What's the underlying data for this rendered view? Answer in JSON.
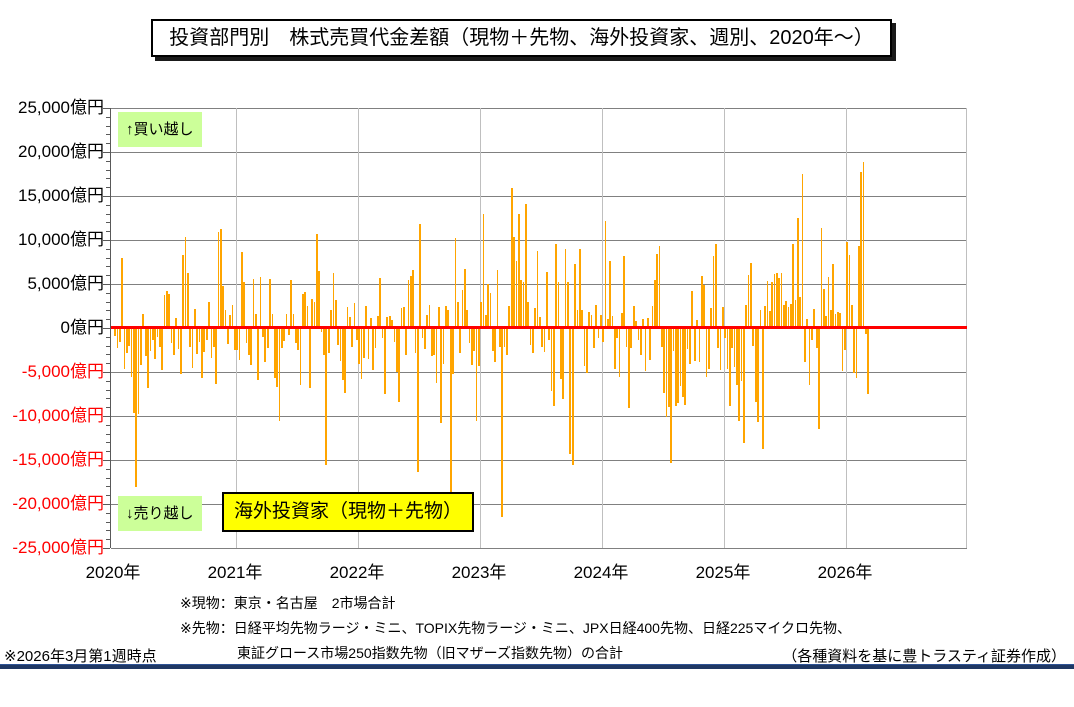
{
  "title": "投資部門別　株式売買代金差額（現物＋先物、海外投資家、週別、2020年～）",
  "annotations": {
    "buy_label": "↑買い越し",
    "sell_label": "↓売り越し",
    "series_label": "海外投資家（現物＋先物）"
  },
  "footnotes": [
    "※現物：東京・名古屋　2市場合計",
    "※先物：日経平均先物ラージ・ミニ、TOPIX先物ラージ・ミニ、JPX日経400先物、日経225マイクロ先物、",
    "東証グロース市場250指数先物（旧マザーズ指数先物）の合計"
  ],
  "footer": {
    "as_of": "※2026年3月第1週時点",
    "source": "（各種資料を基に豊トラスティ証券作成）"
  },
  "colors": {
    "bar": "#ffa500",
    "zero_line": "#ff0000",
    "negative_label": "#ff0000",
    "gridline_h": "#808080",
    "gridline_v": "#bfbfbf",
    "buy_sell_box_bg": "#ccff99",
    "series_box_bg": "#ffff00",
    "bottom_rule": "#1f3864"
  },
  "chart_data": {
    "type": "bar",
    "title": "投資部門別　株式売買代金差額（現物＋先物、海外投資家、週別、2020年～）",
    "unit": "億円",
    "ylim": [
      -25000,
      25000
    ],
    "y_major_step": 5000,
    "y_minor_step": 1000,
    "grid": true,
    "y_tick_labels": [
      "25,000億円",
      "20,000億円",
      "15,000億円",
      "10,000億円",
      "5,000億円",
      "0億円",
      "-5,000億円",
      "-10,000億円",
      "-15,000億円",
      "-20,000億円",
      "-25,000億円"
    ],
    "x_tick_labels": [
      "2020年",
      "2021年",
      "2022年",
      "2023年",
      "2024年",
      "2025年",
      "2026年"
    ],
    "series": [
      {
        "name": "海外投資家（現物＋先物）",
        "frequency": "weekly",
        "start_year": 2020,
        "weeks_per_year": 52,
        "end_label": "2026年3月第1週",
        "values": [
          -800,
          -2200,
          -1500,
          8000,
          -4500,
          -2700,
          -1900,
          -5400,
          -9600,
          -17900,
          -9700,
          -4100,
          1600,
          -3100,
          -6700,
          -2500,
          -1300,
          -3400,
          -900,
          -2100,
          -4700,
          3700,
          4200,
          3900,
          -1600,
          -2900,
          1100,
          -2300,
          -5100,
          8300,
          10300,
          6300,
          -2000,
          -4400,
          2200,
          -2800,
          -1500,
          -5600,
          -2600,
          -1200,
          2900,
          -3300,
          -2000,
          -6200,
          10900,
          11200,
          4800,
          2100,
          -1700,
          1500,
          2600,
          -2400,
          -2400,
          -3500,
          8600,
          5200,
          -1600,
          -3000,
          -4100,
          5600,
          1600,
          -5800,
          5750,
          -900,
          -3700,
          -2200,
          5600,
          1600,
          -5600,
          -6550,
          -10500,
          -2200,
          -1400,
          1600,
          -700,
          5400,
          1600,
          -1600,
          -2400,
          -6400,
          3900,
          4050,
          2540,
          -6740,
          3300,
          2900,
          10700,
          6500,
          -300,
          -3000,
          -15500,
          -2700,
          2100,
          6300,
          3200,
          -1800,
          -3600,
          -5800,
          -7300,
          2400,
          1300,
          -2100,
          2800,
          -1200,
          -4000,
          -5700,
          -3300,
          2500,
          -3400,
          1100,
          -4700,
          -2200,
          1400,
          5700,
          -1000,
          -7400,
          1200,
          1400,
          900,
          -1500,
          -4900,
          -8300,
          2300,
          2400,
          -2900,
          5400,
          5900,
          6600,
          -2700,
          -16200,
          11800,
          -1000,
          -2300,
          1500,
          2600,
          -3100,
          -2900,
          -6100,
          2400,
          -10700,
          -4000,
          2500,
          2100,
          -19400,
          -5100,
          10200,
          3000,
          -2700,
          4300,
          6700,
          2100,
          -1600,
          -4100,
          -2500,
          -10500,
          -4200,
          3000,
          13000,
          1500,
          5000,
          4000,
          -2500,
          -3800,
          6600,
          -2000,
          -21400,
          -2000,
          -3000,
          2500,
          15900,
          10300,
          7600,
          12950,
          5500,
          5200,
          14100,
          3000,
          -1800,
          -2700,
          2300,
          8800,
          1200,
          -2000,
          -2600,
          6400,
          -1300,
          -7000,
          -8800,
          9550,
          5200,
          -5700,
          -8000,
          9000,
          5200,
          -14200,
          -15450,
          7300,
          2000,
          9000,
          2100,
          -4200,
          -5000,
          1800,
          1500,
          -2200,
          2600,
          -1000,
          1500,
          -1500,
          12200,
          1000,
          7650,
          1400,
          -4600,
          -1000,
          -5500,
          1700,
          8200,
          -2000,
          -9000,
          -2200,
          2500,
          800,
          -1200,
          -3000,
          1000,
          -4800,
          1100,
          -3500,
          2500,
          5500,
          8450,
          9350,
          -2000,
          -7300,
          -10050,
          -8900,
          -15200,
          -2500,
          -8800,
          -8400,
          -6500,
          -7760,
          -8650,
          -2300,
          -3980,
          4200,
          -3600,
          860,
          -3750,
          5870,
          4900,
          -5500,
          -4540,
          2270,
          8180,
          9500,
          -2120,
          -4700,
          2400,
          -1060,
          -4500,
          -8700,
          -2200,
          -4300,
          -6360,
          -10500,
          -5900,
          -13000,
          2600,
          6060,
          7390,
          -1890,
          -8270,
          -10600,
          2000,
          -13600,
          2500,
          5300,
          1900,
          5200,
          6100,
          6200,
          5700,
          6300,
          2600,
          3100,
          2400,
          2700,
          9500,
          3200,
          12550,
          3500,
          17500,
          -3700,
          1000,
          -6400,
          -1300,
          2200,
          -2200,
          -11400,
          11400,
          4400,
          1400,
          5800,
          2100,
          7300,
          1600,
          1800,
          1700,
          -4800,
          -2400,
          9800,
          8300,
          2600,
          -5000,
          -5600,
          9300,
          17700,
          18900,
          -600,
          -7400
        ]
      }
    ]
  }
}
